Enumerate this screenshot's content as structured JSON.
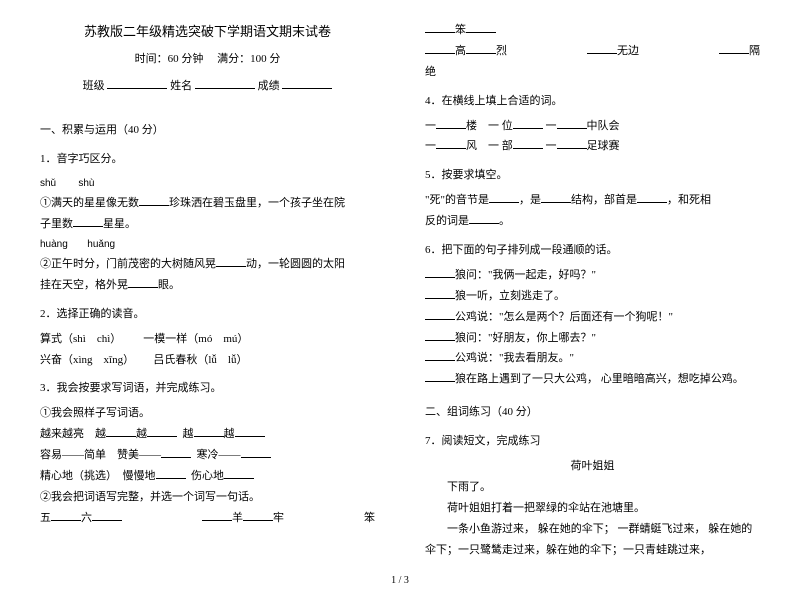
{
  "header": {
    "title": "苏教版二年级精选突破下学期语文期末试卷",
    "time_label": "时间：",
    "time_value": "60 分钟",
    "score_label": "满分：",
    "score_value": "100 分",
    "class_label": "班级",
    "name_label": "姓名",
    "grade_label": "成绩"
  },
  "left": {
    "section1": "一、积累与运用（40 分）",
    "q1": "1．音字巧区分。",
    "q1_pinyin1_a": "shǔ",
    "q1_pinyin1_b": "shù",
    "q1_line1": "①满天的星星像无数",
    "q1_line1b": "珍珠洒在碧玉盘里，一个孩子坐在院",
    "q1_line1c": "子里数",
    "q1_line1d": "星星。",
    "q1_pinyin2_a": "huàng",
    "q1_pinyin2_b": "huǎng",
    "q1_line2": "②正午时分，门前茂密的大树随风晃",
    "q1_line2b": "动，一轮圆圆的太阳",
    "q1_line2c": "挂在天空，格外晃",
    "q1_line2d": "眼。",
    "q2": "2．选择正确的读音。",
    "q2_a": "算式（shì　chì）",
    "q2_b": "一模一样（mó　mú）",
    "q2_c": "兴奋（xìng　xīng）",
    "q2_d": "吕氏春秋（lǚ　lǚ）",
    "q3": "3．我会按要求写词语，并完成练习。",
    "q3_1": "①我会照样子写词语。",
    "q3_1a": "越来越亮　越",
    "q3_1a2": "越",
    "q3_1a3": "越",
    "q3_1a4": "越",
    "q3_1b": "容易——简单　赞美——",
    "q3_1b2": "寒冷——",
    "q3_1c": "精心地（挑选）　慢慢地",
    "q3_1c2": "伤心地",
    "q3_2": "②我会把词语写完整，并选一个词写一句话。",
    "q3_2a": "五",
    "q3_2b": "六",
    "q3_2c": "羊",
    "q3_2d": "牢",
    "q3_2e": "笨"
  },
  "right": {
    "r1a": "笨",
    "r1b": "高",
    "r1c": "烈",
    "r1d": "无边",
    "r1e": "隔",
    "r1f": "绝",
    "q4": "4．在横线上填上合适的词。",
    "q4_a": "一",
    "q4_a2": "楼　一 位",
    "q4_a3": "一",
    "q4_a4": "中队会",
    "q4_b": "一",
    "q4_b2": "风　一 部",
    "q4_b3": "一",
    "q4_b4": "足球赛",
    "q5": "5．按要求填空。",
    "q5_line": "\"死\"的音节是",
    "q5_line2": "，是",
    "q5_line3": "结构，部首是",
    "q5_line4": "，和死相",
    "q5_line5": "反的词是",
    "q5_line6": "。",
    "q6": "6．把下面的句子排列成一段通顺的话。",
    "q6_1": "狼问：\"我俩一起走，好吗？\"",
    "q6_2": "狼一听，立刻逃走了。",
    "q6_3": "公鸡说：\"怎么是两个？后面还有一个狗呢！\"",
    "q6_4": "狼问：\"好朋友，你上哪去？\"",
    "q6_5": "公鸡说：\"我去看朋友。\"",
    "q6_6": "狼在路上遇到了一只大公鸡， 心里暗暗高兴，想吃掉公鸡。",
    "section2": "二、组词练习（40 分）",
    "q7": "7．阅读短文，完成练习",
    "q7_title": "荷叶姐姐",
    "q7_p1": "下雨了。",
    "q7_p2": "荷叶姐姐打着一把翠绿的伞站在池塘里。",
    "q7_p3": "一条小鱼游过来， 躲在她的伞下； 一群蜻蜓飞过来， 躲在她的伞下；一只鹭鸶走过来，躲在她的伞下；一只青蛙跳过来，"
  },
  "footer": "1 / 3"
}
